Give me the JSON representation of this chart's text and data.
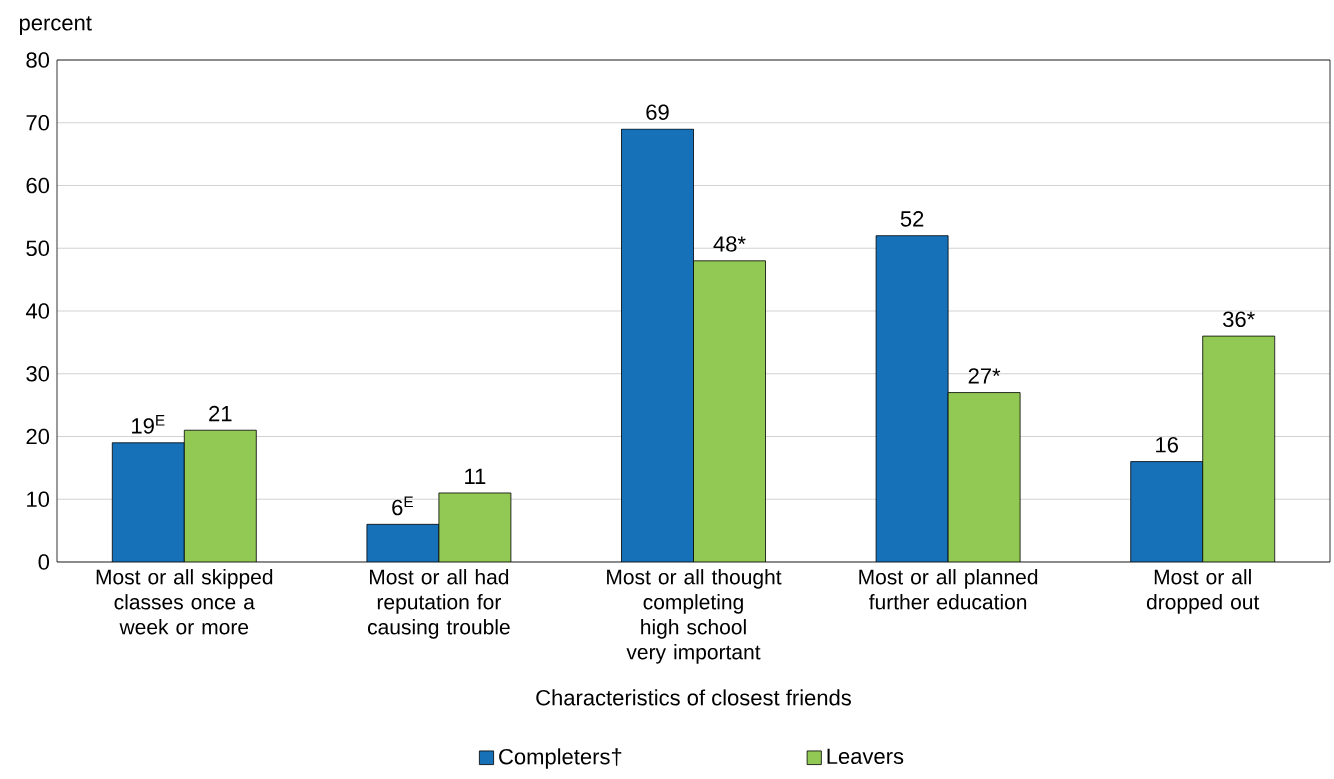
{
  "chart_data": {
    "type": "bar",
    "xlabel": "Characteristics of closest friends",
    "ylabel": "percent",
    "categories": [
      "Most or all skipped classes once a week or more",
      "Most or all had reputation for causing trouble",
      "Most or all thought completing high school very important",
      "Most or all planned further education",
      "Most or all dropped out"
    ],
    "series": [
      {
        "name": "Completers†",
        "color": "#1771b9",
        "values": [
          19,
          6,
          69,
          52,
          16
        ],
        "value_labels": [
          "19$^{E}$",
          "6$^{E}$",
          "69",
          "52",
          "16"
        ]
      },
      {
        "name": "Leavers",
        "color": "#92c955",
        "values": [
          21,
          11,
          48,
          27,
          36
        ],
        "value_labels": [
          "21",
          "11",
          "48*",
          "27*",
          "36*"
        ]
      }
    ],
    "ylim": [
      0,
      80
    ],
    "yticks": [
      0,
      10,
      20,
      30,
      40,
      50,
      60,
      70,
      80
    ],
    "grid": "y",
    "legend": "bottom"
  }
}
